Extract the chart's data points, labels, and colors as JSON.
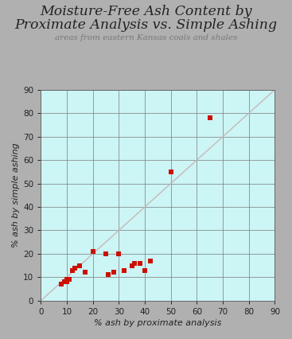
{
  "title_line1": "Moisture-Free Ash Content by",
  "title_line2": "Proximate Analysis vs. Simple Ashing",
  "subtitle": "areas from eastern Kansas coals and shales",
  "xlabel": "% ash by proximate analysis",
  "ylabel": "% ash by simple ashing",
  "xlim": [
    0,
    90
  ],
  "ylim": [
    0,
    90
  ],
  "xticks": [
    0,
    10,
    20,
    30,
    40,
    50,
    60,
    70,
    80,
    90
  ],
  "yticks": [
    0,
    10,
    20,
    30,
    40,
    50,
    60,
    70,
    80,
    90
  ],
  "background_color": "#b0b0b0",
  "plot_bg_color": "#ccf5f5",
  "grid_color": "#7a7a7a",
  "diagonal_color": "#c8b8b8",
  "marker_color": "#cc1100",
  "marker_size": 22,
  "title_fontsize": 12.5,
  "subtitle_fontsize": 7.5,
  "axis_label_fontsize": 8,
  "tick_fontsize": 7.5,
  "scatter_x": [
    8,
    9,
    10,
    10,
    11,
    12,
    13,
    15,
    17,
    20,
    25,
    26,
    28,
    30,
    30,
    32,
    35,
    36,
    38,
    40,
    42,
    50,
    65
  ],
  "scatter_y": [
    7,
    8,
    8,
    9,
    9,
    13,
    14,
    15,
    12,
    21,
    20,
    11,
    12,
    20,
    20,
    13,
    15,
    16,
    16,
    13,
    17,
    55,
    78
  ]
}
